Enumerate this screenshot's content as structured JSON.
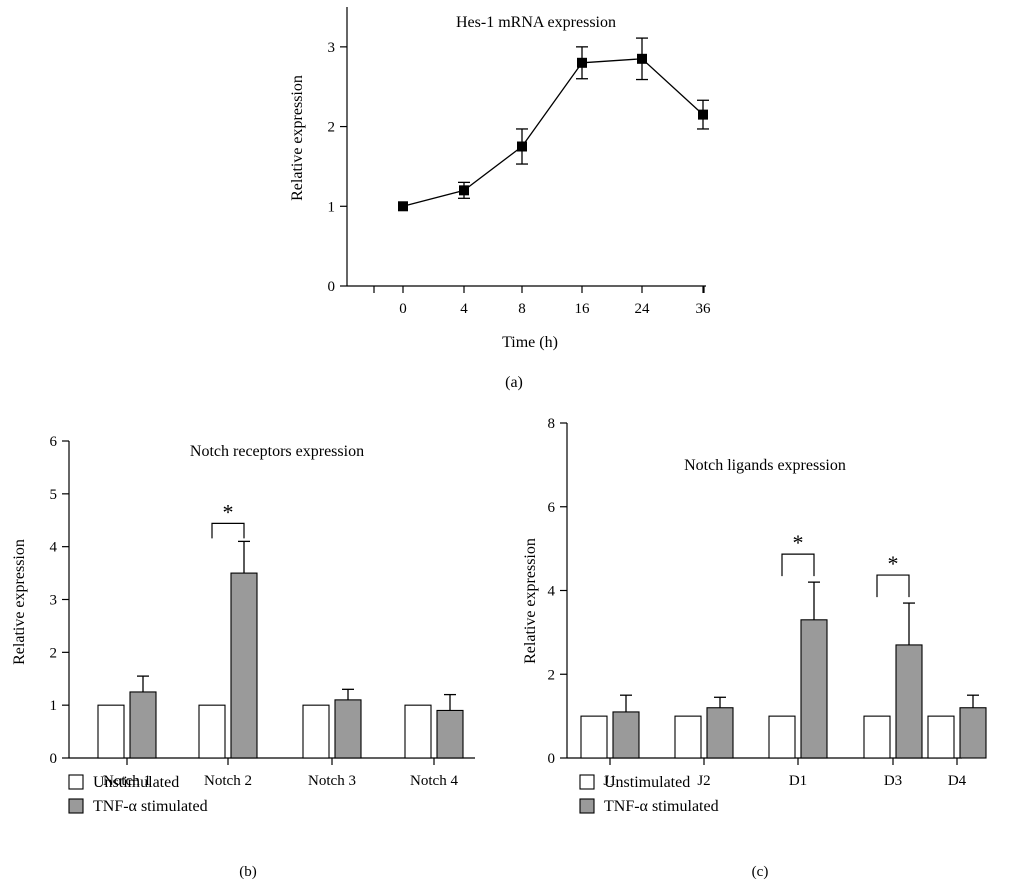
{
  "chart_data": [
    {
      "panel_label": "(a)",
      "type": "line",
      "title": "Hes-1 mRNA expression",
      "xlabel": "Time (h)",
      "ylabel": "Relative expression",
      "ylim": [
        0,
        3.5
      ],
      "y_ticks": [
        0,
        1,
        2,
        3
      ],
      "categories": [
        "0",
        "4",
        "8",
        "16",
        "24",
        "36"
      ],
      "series": [
        {
          "values": [
            1.0,
            1.2,
            1.75,
            2.8,
            2.85,
            2.15
          ],
          "errors": [
            0.0,
            0.1,
            0.22,
            0.2,
            0.26,
            0.18
          ]
        }
      ],
      "grid": false
    },
    {
      "panel_label": "(b)",
      "type": "bar",
      "title": "Notch receptors expression",
      "xlabel": "",
      "ylabel": "Relative expression",
      "ylim": [
        0,
        6
      ],
      "y_ticks": [
        0,
        1,
        2,
        3,
        4,
        5,
        6
      ],
      "categories": [
        "Notch 1",
        "Notch 2",
        "Notch 3",
        "Notch 4"
      ],
      "series": [
        {
          "name": "Unstimulated",
          "values": [
            1,
            1,
            1,
            1
          ],
          "errors": [
            0,
            0,
            0,
            0
          ],
          "color": "#ffffff"
        },
        {
          "name": "TNF-α stimulated",
          "values": [
            1.25,
            3.5,
            1.1,
            0.9
          ],
          "errors": [
            0.3,
            0.6,
            0.2,
            0.3
          ],
          "color": "#9a9a9a"
        }
      ],
      "significance": [
        {
          "category_index": 1,
          "label": "*"
        }
      ],
      "legend": "bottom-left",
      "grid": false
    },
    {
      "panel_label": "(c)",
      "type": "bar",
      "title": "Notch ligands expression",
      "xlabel": "",
      "ylabel": "Relative expression",
      "ylim": [
        0,
        8
      ],
      "y_ticks": [
        0,
        2,
        4,
        6,
        8
      ],
      "categories": [
        "J1",
        "J2",
        "D1",
        "D3",
        "D4"
      ],
      "series": [
        {
          "name": "Unstimulated",
          "values": [
            1,
            1,
            1,
            1,
            1
          ],
          "errors": [
            0,
            0,
            0,
            0,
            0
          ],
          "color": "#ffffff"
        },
        {
          "name": "TNF-α stimulated",
          "values": [
            1.1,
            1.2,
            3.3,
            2.7,
            1.2
          ],
          "errors": [
            0.4,
            0.25,
            0.9,
            1.0,
            0.3
          ],
          "color": "#9a9a9a"
        }
      ],
      "significance": [
        {
          "category_index": 2,
          "label": "*"
        },
        {
          "category_index": 3,
          "label": "*"
        }
      ],
      "legend": "bottom-left",
      "grid": false
    }
  ]
}
